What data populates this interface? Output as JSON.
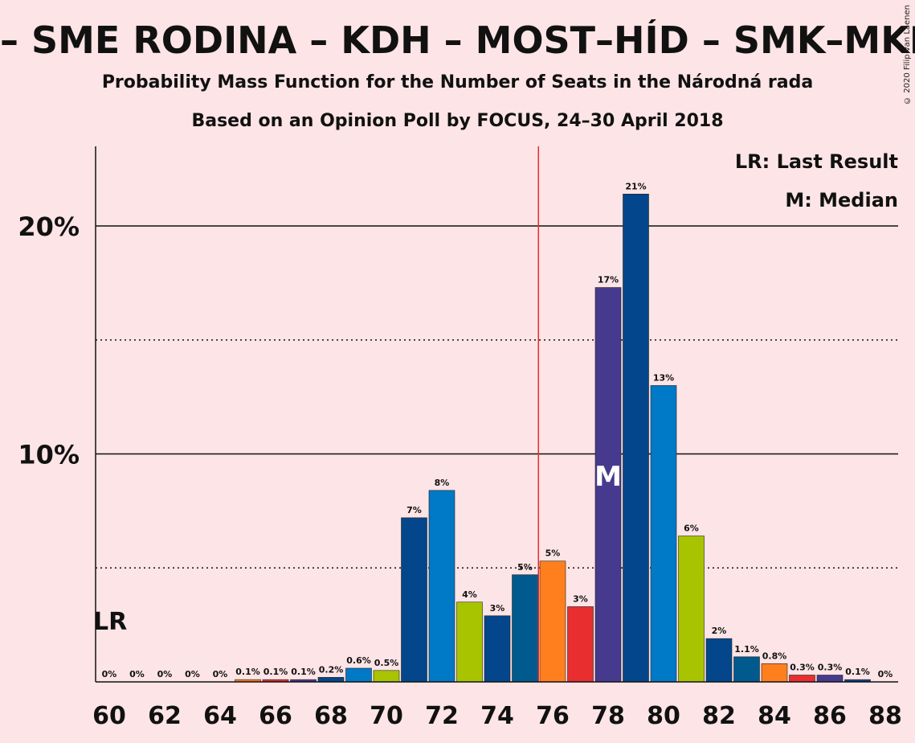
{
  "header": {
    "title": "– SME RODINA – KDH – MOST–HÍD – SMK–MKP – PS",
    "subtitle1": "Probability Mass Function for the Number of Seats in the Národná rada",
    "subtitle2": "Based on an Opinion Poll by FOCUS, 24–30 April 2018",
    "copyright": "© 2020 Filip van Laenen"
  },
  "legend": {
    "lr": "LR: Last Result",
    "median": "M: Median"
  },
  "markers": {
    "lr_label": "LR",
    "median_label": "M"
  },
  "chart_data": {
    "type": "bar",
    "title": "Probability Mass Function for the Number of Seats in the Národná rada",
    "x": [
      60,
      61,
      62,
      63,
      64,
      65,
      66,
      67,
      68,
      69,
      70,
      71,
      72,
      73,
      74,
      75,
      76,
      77,
      78,
      79,
      80,
      81,
      82,
      83,
      84,
      85,
      86,
      87,
      88
    ],
    "values": [
      0,
      0,
      0,
      0,
      0,
      0.1,
      0.1,
      0.1,
      0.2,
      0.6,
      0.5,
      7.2,
      8.4,
      3.5,
      2.9,
      4.7,
      5.3,
      3.3,
      17.3,
      21.4,
      13.0,
      6.4,
      1.9,
      1.1,
      0.8,
      0.3,
      0.3,
      0.1,
      0
    ],
    "labels": [
      "0%",
      "0%",
      "0%",
      "0%",
      "0%",
      "0.1%",
      "0.1%",
      "0.1%",
      "0.2%",
      "0.6%",
      "0.5%",
      "7%",
      "8%",
      "4%",
      "3%",
      "5%",
      "5%",
      "3%",
      "17%",
      "21%",
      "13%",
      "6%",
      "2%",
      "1.1%",
      "0.8%",
      "0.3%",
      "0.3%",
      "0.1%",
      "0%"
    ],
    "colors": [
      "#03468b",
      "#0079c6",
      "#a8c400",
      "#03468b",
      "#005a8e",
      "#ff7f1e",
      "#e82e2e",
      "#463a8f",
      "#03468b",
      "#0079c6",
      "#a8c400",
      "#03468b",
      "#0079c6",
      "#a8c400",
      "#03468b",
      "#005a8e",
      "#ff7f1e",
      "#e82e2e",
      "#463a8f",
      "#03468b",
      "#0079c6",
      "#a8c400",
      "#03468b",
      "#005a8e",
      "#ff7f1e",
      "#e82e2e",
      "#463a8f",
      "#03468b",
      "#0079c6"
    ],
    "xticks": [
      60,
      62,
      64,
      66,
      68,
      70,
      72,
      74,
      76,
      78,
      80,
      82,
      84,
      86,
      88
    ],
    "yticks": [
      {
        "value": 10,
        "label": "10%"
      },
      {
        "value": 20,
        "label": "20%"
      }
    ],
    "minor_gridlines": [
      5,
      15
    ],
    "ylim": [
      0,
      23.5
    ],
    "xlim": [
      59.5,
      88.5
    ],
    "majority_line": 75.5,
    "last_result": 60,
    "median": 78,
    "grid": true,
    "legend_position": "top-right",
    "majority_line_color": "#e82e2e"
  }
}
